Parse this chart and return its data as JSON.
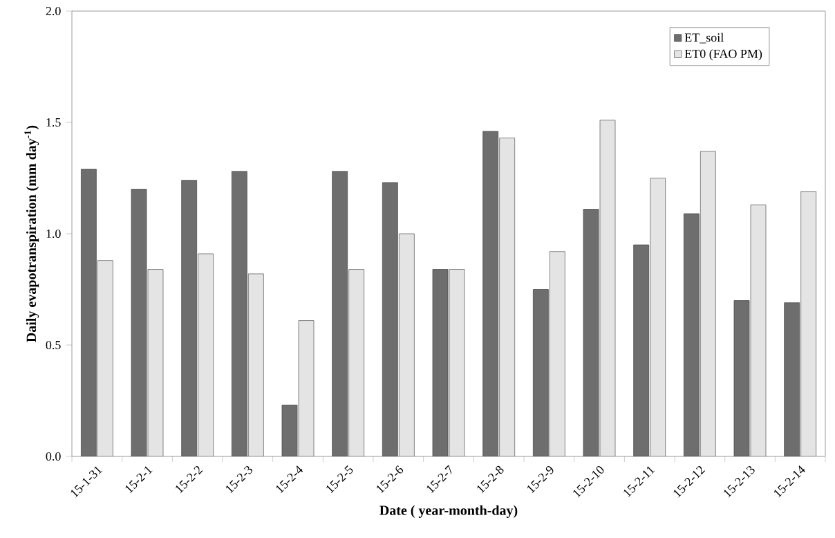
{
  "chart_data": {
    "type": "bar",
    "xlabel": "Date ( year-month-day)",
    "ylabel": "Daily evapotranspiration (mm day$^{-1}$)",
    "categories": [
      "15-1-31",
      "15-2-1",
      "15-2-2",
      "15-2-3",
      "15-2-4",
      "15-2-5",
      "15-2-6",
      "15-2-7",
      "15-2-8",
      "15-2-9",
      "15-2-10",
      "15-2-11",
      "15-2-12",
      "15-2-13",
      "15-2-14"
    ],
    "series": [
      {
        "name": "ET_soil",
        "color": "#6e6e6e",
        "values": [
          1.29,
          1.2,
          1.24,
          1.28,
          0.23,
          1.28,
          1.23,
          0.84,
          1.46,
          0.75,
          1.11,
          0.95,
          1.09,
          0.7,
          0.69
        ]
      },
      {
        "name": "ET0 (FAO PM)",
        "color": "#e4e4e4",
        "values": [
          0.88,
          0.84,
          0.91,
          0.82,
          0.61,
          0.84,
          1.0,
          0.84,
          1.43,
          0.92,
          1.51,
          1.25,
          1.37,
          1.13,
          1.19
        ]
      }
    ],
    "ylim": [
      0.0,
      2.0
    ],
    "yticks": [
      {
        "value": 0.0,
        "label": "0.0"
      },
      {
        "value": 0.5,
        "label": "0.5"
      },
      {
        "value": 1.0,
        "label": "1.0"
      },
      {
        "value": 1.5,
        "label": "1.5"
      },
      {
        "value": 2.0,
        "label": "2.0"
      }
    ],
    "legend": "top right",
    "grid": false
  }
}
